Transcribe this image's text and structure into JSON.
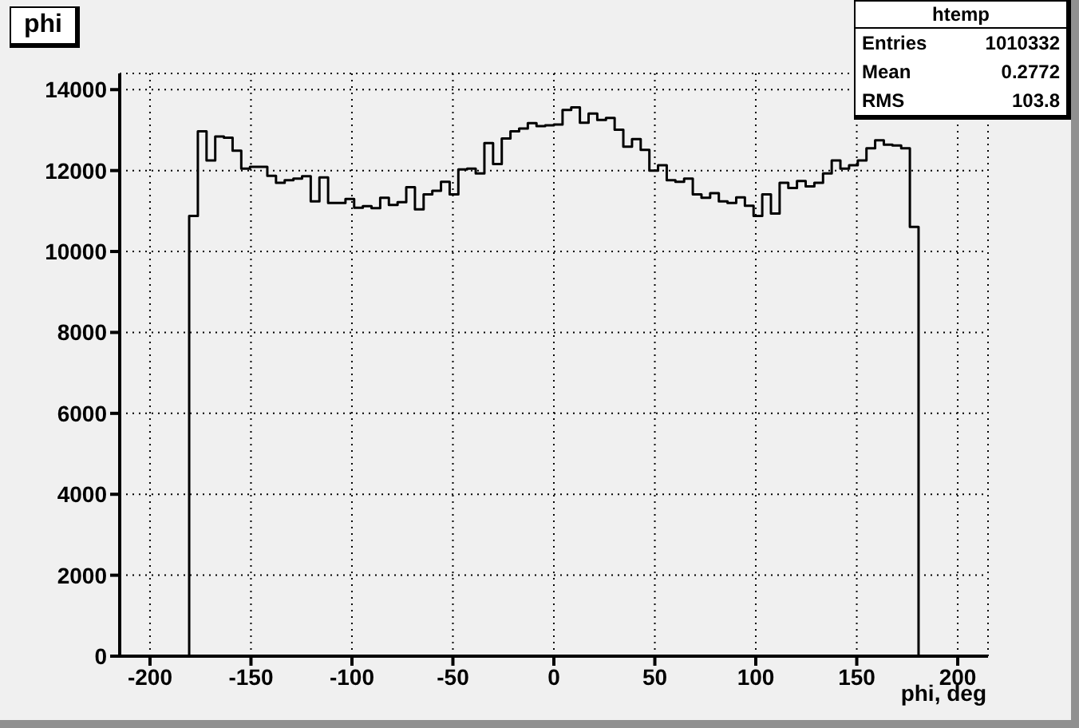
{
  "chart_data": {
    "type": "histogram",
    "title": "phi",
    "xlabel": "phi, deg",
    "bins": [
      -180.6,
      -176.3,
      -172,
      -167.7,
      -163.4,
      -159.1,
      -154.8,
      -150.5,
      -146.2,
      -141.9,
      -137.6,
      -133.3,
      -129,
      -124.7,
      -120.4,
      -116.1,
      -111.8,
      -107.5,
      -103.2,
      -98.9,
      -94.6,
      -90.3,
      -86,
      -81.7,
      -77.4,
      -73.1,
      -68.8,
      -64.5,
      -60.2,
      -55.9,
      -51.6,
      -47.3,
      -43,
      -38.7,
      -34.4,
      -30.1,
      -25.8,
      -21.5,
      -17.2,
      -12.9,
      -8.6,
      -4.3,
      0,
      4.3,
      8.6,
      12.9,
      17.2,
      21.5,
      25.8,
      30.1,
      34.4,
      38.7,
      43,
      47.3,
      51.6,
      55.9,
      60.2,
      64.5,
      68.8,
      73.1,
      77.4,
      81.7,
      86,
      90.3,
      94.6,
      98.9,
      103.2,
      107.5,
      111.8,
      116.1,
      120.4,
      124.7,
      129,
      133.3,
      137.6,
      141.9,
      146.2,
      150.5,
      154.8,
      159.1,
      163.4,
      167.7,
      172,
      176.3,
      180.6
    ],
    "values": [
      10880,
      12970,
      12250,
      12840,
      12810,
      12490,
      12050,
      12090,
      12090,
      11870,
      11700,
      11760,
      11800,
      11860,
      11240,
      11830,
      11200,
      11200,
      11300,
      11080,
      11120,
      11070,
      11330,
      11150,
      11220,
      11590,
      11040,
      11410,
      11500,
      11720,
      11410,
      12030,
      12050,
      11930,
      12680,
      12160,
      12790,
      12970,
      13040,
      13170,
      13100,
      13120,
      13140,
      13500,
      13560,
      13180,
      13410,
      13250,
      13300,
      13010,
      12590,
      12780,
      12510,
      12000,
      12130,
      11760,
      11720,
      11800,
      11410,
      11330,
      11440,
      11240,
      11200,
      11340,
      11130,
      10880,
      11410,
      10940,
      11700,
      11570,
      11740,
      11610,
      11700,
      11930,
      12250,
      12050,
      12130,
      12250,
      12550,
      12750,
      12640,
      12620,
      12550,
      10610
    ],
    "color": "#000000",
    "xlim": [
      -215,
      215
    ],
    "xticks": [
      -200,
      -150,
      -100,
      -50,
      0,
      50,
      100,
      150,
      200
    ],
    "ylim": [
      0,
      14400
    ],
    "yticks": [
      0,
      2000,
      4000,
      6000,
      8000,
      10000,
      12000,
      14000
    ],
    "grid": true,
    "annotations": [
      "htemp",
      "Entries 1010332",
      "Mean 0.2772",
      "RMS 103.8"
    ]
  }
}
